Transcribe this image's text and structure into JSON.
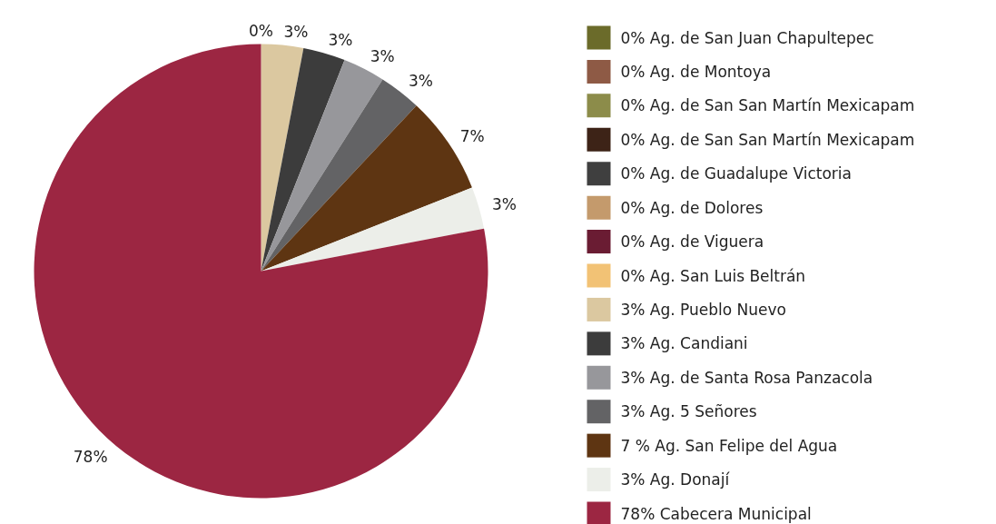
{
  "chart_data": {
    "type": "pie",
    "categories": [
      "0% Ag. de San Juan Chapultepec",
      "0% Ag. de Montoya",
      "0% Ag. de San San Martín Mexicapam",
      "0% Ag. de San San Martín Mexicapam",
      "0% Ag. de Guadalupe Victoria",
      "0% Ag. de Dolores",
      "0% Ag. de Viguera",
      "0% Ag. San Luis Beltrán",
      "3% Ag. Pueblo Nuevo",
      "3% Ag. Candiani",
      "3% Ag. de Santa Rosa Panzacola",
      "3% Ag. 5 Señores",
      "7 % Ag. San Felipe del Agua",
      "3% Ag. Donají",
      "78% Cabecera Municipal"
    ],
    "values": [
      0,
      0,
      0,
      0,
      0,
      0,
      0,
      0,
      3,
      3,
      3,
      3,
      7,
      3,
      78
    ],
    "colors": [
      "#6b6b2a",
      "#8e5a45",
      "#8c8c4a",
      "#3d2317",
      "#3f3f3f",
      "#c49a6c",
      "#6a1c33",
      "#f2c275",
      "#dbc8a0",
      "#3c3c3c",
      "#97979b",
      "#636365",
      "#5e3512",
      "#eceee9",
      "#9c2642"
    ],
    "value_labels": [
      null,
      null,
      null,
      null,
      null,
      null,
      null,
      "0%",
      "3%",
      "3%",
      "3%",
      "3%",
      "7%",
      "3%",
      "78%"
    ],
    "legend": "right"
  }
}
